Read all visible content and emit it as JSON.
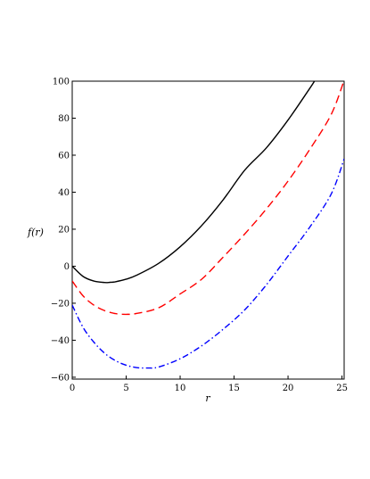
{
  "chart_data": {
    "type": "line",
    "title": "",
    "xlabel": "r",
    "ylabel": "f(r)",
    "xlim": [
      0,
      25.2
    ],
    "ylim": [
      -61,
      100
    ],
    "xticks": [
      0,
      5,
      10,
      15,
      20,
      25
    ],
    "yticks": [
      -60,
      -40,
      -20,
      0,
      20,
      40,
      60,
      80,
      100
    ],
    "grid": false,
    "series": [
      {
        "color": "#000000",
        "dash": "solid",
        "x": [
          0,
          1,
          2,
          3,
          3.5,
          4,
          5,
          6,
          8,
          10,
          12,
          14,
          16,
          18,
          20,
          22,
          22.5
        ],
        "y": [
          0,
          -5.5,
          -8,
          -8.8,
          -8.7,
          -8.4,
          -7,
          -4.8,
          1.5,
          10.5,
          22,
          36,
          52,
          64,
          79,
          96,
          100.5
        ]
      },
      {
        "color": "#ff0000",
        "dash": "dashed",
        "x": [
          0,
          1,
          2,
          3,
          4,
          5,
          6,
          8,
          10,
          12,
          14,
          16,
          18,
          20,
          22,
          24,
          25.2
        ],
        "y": [
          -8,
          -16,
          -21,
          -24,
          -25.6,
          -26,
          -25.5,
          -22.5,
          -15,
          -7,
          5,
          17.5,
          31,
          46,
          63,
          82,
          100.5
        ]
      },
      {
        "color": "#0000ff",
        "dash": "dashdot",
        "x": [
          0,
          1,
          2,
          3,
          4,
          5,
          6,
          7,
          8,
          10,
          12,
          14,
          16,
          18,
          20,
          22,
          24,
          25.2
        ],
        "y": [
          -21,
          -33,
          -41,
          -47,
          -51,
          -53.5,
          -54.8,
          -55,
          -54.5,
          -50,
          -43,
          -34,
          -23.5,
          -10,
          5.5,
          21,
          39,
          58
        ]
      }
    ]
  }
}
